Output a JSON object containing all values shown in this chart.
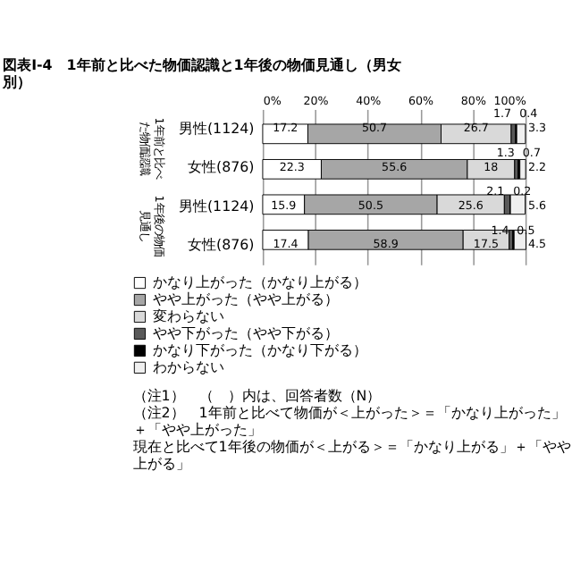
{
  "chart_data": {
    "type": "bar",
    "orientation": "horizontal",
    "stacked": true,
    "title": "図表Ⅰ-4　1年前と比べた物価認識と1年後の物価見通し（男女別）",
    "categories": [
      "男性(1124)",
      "女性(876)",
      "男性(1124)",
      "女性(876)"
    ],
    "series": [
      {
        "name": "かなり上がった（かなり上がる）",
        "color": "#ffffff",
        "values": [
          17.2,
          22.3,
          15.9,
          17.4
        ]
      },
      {
        "name": "やや上がった（やや上がる）",
        "color": "#a6a6a6",
        "values": [
          50.7,
          55.6,
          50.5,
          58.9
        ]
      },
      {
        "name": "変わらない",
        "color": "#d9d9d9",
        "values": [
          26.7,
          18,
          25.6,
          17.5
        ]
      },
      {
        "name": "やや下がった（やや下がる）",
        "color": "#595959",
        "values": [
          1.7,
          1.3,
          2.1,
          1.4
        ]
      },
      {
        "name": "かなり下がった（かなり下がる）",
        "color": "#000000",
        "values": [
          0.4,
          0.7,
          0.2,
          0.5
        ]
      },
      {
        "name": "わからない",
        "color": "#efefef",
        "values": [
          3.3,
          2.2,
          5.6,
          4.5
        ]
      }
    ],
    "xlim": [
      0,
      100
    ],
    "xticks": [
      {
        "value": 0,
        "label": "0%"
      },
      {
        "value": 20,
        "label": "20%"
      },
      {
        "value": 40,
        "label": "40%"
      },
      {
        "value": 60,
        "label": "60%"
      },
      {
        "value": 80,
        "label": "80%"
      },
      {
        "value": 100,
        "label": "100%"
      }
    ],
    "grid": "x",
    "legend": "bottom",
    "data_labels": true,
    "annotations": [
      "1年前と比べた物価認識",
      "1年後の物価見通し",
      "（注1）　（　）内は、回答者数（N）",
      "（注2）　1年前と比べて物価が＜上がった＞＝「かなり上がった」＋「やや上がった」",
      "現在と比べて1年後の物価が＜上がる＞＝「かなり上がる」＋「やや上がる」"
    ]
  }
}
